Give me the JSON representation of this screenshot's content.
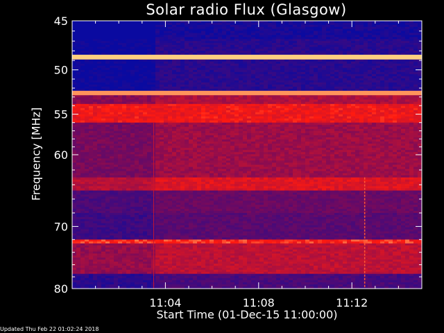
{
  "footer": {
    "updated": "Updated Thu Feb 22 01:02:24 2018"
  },
  "chart_data": {
    "type": "heatmap",
    "title": "Solar radio Flux (Glasgow)",
    "xlabel": "Start Time (01-Dec-15 11:00:00)",
    "ylabel": "Frequency [MHz]",
    "xlim_minutes": [
      0,
      15
    ],
    "ylim_mhz": [
      45,
      80
    ],
    "y_inverted": true,
    "y_scale": "log",
    "x_ticks": [
      {
        "minutes": 4,
        "label": "11:04"
      },
      {
        "minutes": 8,
        "label": "11:08"
      },
      {
        "minutes": 12,
        "label": "11:12"
      }
    ],
    "y_ticks": [
      {
        "mhz": 45,
        "label": "45"
      },
      {
        "mhz": 50,
        "label": "50"
      },
      {
        "mhz": 55,
        "label": "55"
      },
      {
        "mhz": 60,
        "label": "60"
      },
      {
        "mhz": 70,
        "label": "70"
      },
      {
        "mhz": 80,
        "label": "80"
      }
    ],
    "colors": {
      "low": "#0a0aa0",
      "mid": "#7a0a5a",
      "high": "#ff1a10",
      "peak": "#ffd080"
    },
    "bands": [
      {
        "from_mhz": 45.0,
        "to_mhz": 46.8,
        "level": 0.05
      },
      {
        "from_mhz": 46.8,
        "to_mhz": 48.4,
        "level": 0.12
      },
      {
        "from_mhz": 48.4,
        "to_mhz": 48.9,
        "level": 1.0
      },
      {
        "from_mhz": 48.9,
        "to_mhz": 52.3,
        "level": 0.12
      },
      {
        "from_mhz": 52.3,
        "to_mhz": 52.8,
        "level": 0.95
      },
      {
        "from_mhz": 52.8,
        "to_mhz": 53.8,
        "level": 0.6
      },
      {
        "from_mhz": 53.8,
        "to_mhz": 56.0,
        "level": 0.8
      },
      {
        "from_mhz": 56.0,
        "to_mhz": 63.0,
        "level": 0.55
      },
      {
        "from_mhz": 63.0,
        "to_mhz": 64.8,
        "level": 0.75
      },
      {
        "from_mhz": 64.8,
        "to_mhz": 68.0,
        "level": 0.38
      },
      {
        "from_mhz": 68.0,
        "to_mhz": 72.0,
        "level": 0.32
      },
      {
        "from_mhz": 72.0,
        "to_mhz": 72.6,
        "level": 0.85
      },
      {
        "from_mhz": 72.6,
        "to_mhz": 77.5,
        "level": 0.65
      },
      {
        "from_mhz": 77.5,
        "to_mhz": 80.0,
        "level": 0.25
      }
    ],
    "time_features": [
      {
        "minutes": 3.5,
        "note": "data gap edge"
      },
      {
        "minutes": 12.55,
        "note": "vertical burst"
      }
    ]
  }
}
